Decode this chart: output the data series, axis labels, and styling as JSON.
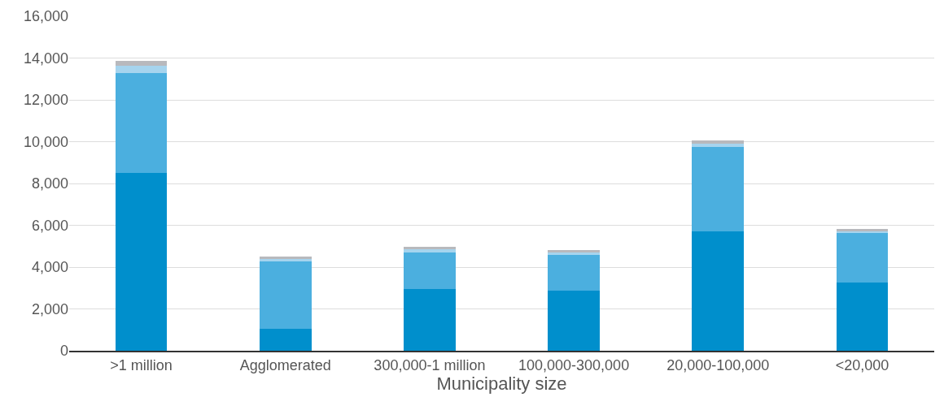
{
  "chart_data": {
    "type": "bar",
    "stacked": true,
    "xlabel": "Municipality size",
    "categories": [
      ">1 million",
      "Agglomerated",
      "300,000-1 million",
      "100,000-300,000",
      "20,000-100,000",
      "<20,000"
    ],
    "series": [
      {
        "color": "#008fcc",
        "values": [
          8500,
          1050,
          2950,
          2880,
          5710,
          3280
        ]
      },
      {
        "color": "#4bafdf",
        "values": [
          4780,
          3240,
          1740,
          1700,
          4050,
          2350
        ]
      },
      {
        "color": "#a6d4ee",
        "values": [
          350,
          100,
          175,
          120,
          160,
          80
        ]
      },
      {
        "color": "#b8b9bd",
        "values": [
          250,
          100,
          110,
          120,
          120,
          120
        ]
      }
    ],
    "ylim": [
      0,
      16000
    ],
    "yticks": [
      {
        "value": 0,
        "label": "0"
      },
      {
        "value": 2000,
        "label": "2,000"
      },
      {
        "value": 4000,
        "label": "4,000"
      },
      {
        "value": 6000,
        "label": "6,000"
      },
      {
        "value": 8000,
        "label": "8,000"
      },
      {
        "value": 10000,
        "label": "10,000"
      },
      {
        "value": 12000,
        "label": "12,000"
      },
      {
        "value": 14000,
        "label": "14,000"
      },
      {
        "value": 16000,
        "label": "16,000"
      }
    ],
    "grid": "y",
    "legend": false
  }
}
